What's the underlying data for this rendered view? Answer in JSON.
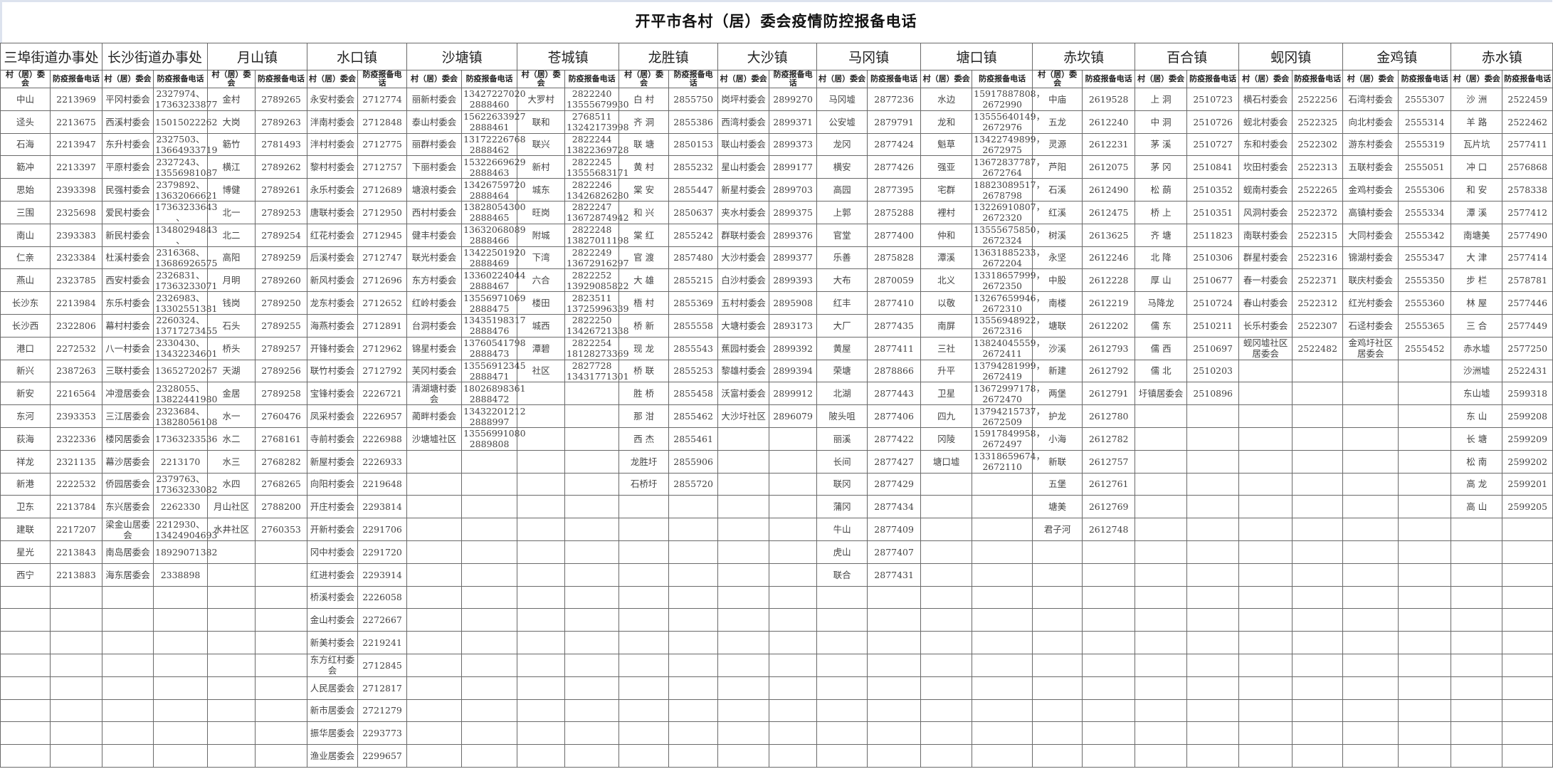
{
  "title": "开平市各村（居）委会疫情防控报备电话",
  "headers": {
    "committee": "村（居）委会",
    "phone": "防疫报备电话"
  },
  "towns": [
    {
      "name": "三埠街道办事处",
      "rows": [
        [
          "中山",
          "2213969"
        ],
        [
          "迳头",
          "2213675"
        ],
        [
          "石海",
          "2213947"
        ],
        [
          "簕冲",
          "2213397"
        ],
        [
          "思始",
          "2393398"
        ],
        [
          "三围",
          "2325698"
        ],
        [
          "南山",
          "2393383"
        ],
        [
          "仁亲",
          "2323384"
        ],
        [
          "燕山",
          "2323785"
        ],
        [
          "长沙东",
          "2213984"
        ],
        [
          "长沙西",
          "2322806"
        ],
        [
          "港口",
          "2272532"
        ],
        [
          "新兴",
          "2387263"
        ],
        [
          "新安",
          "2216564"
        ],
        [
          "东河",
          "2393353"
        ],
        [
          "荻海",
          "2322336"
        ],
        [
          "祥龙",
          "2321135"
        ],
        [
          "新港",
          "2222532"
        ],
        [
          "卫东",
          "2213784"
        ],
        [
          "建联",
          "2217207"
        ],
        [
          "星光",
          "2213843"
        ],
        [
          "西宁",
          "2213883"
        ]
      ]
    },
    {
      "name": "长沙街道办事处",
      "rows": [
        [
          "平冈村委会",
          "2327974、\n17363233877"
        ],
        [
          "西溪村委会",
          "15015022262"
        ],
        [
          "东升村委会",
          "2327503、\n13664933719"
        ],
        [
          "平原村委会",
          "2327243、\n13556981087"
        ],
        [
          "民强村委会",
          "2379892、\n13632066621"
        ],
        [
          "爱民村委会",
          "17363233643\n、"
        ],
        [
          "新民村委会",
          "13480294843\n、"
        ],
        [
          "杜溪村委会",
          "2316368、\n13686926575"
        ],
        [
          "西安村委会",
          "2326831、\n17363233071"
        ],
        [
          "东乐村委会",
          "2326983、\n13302551381"
        ],
        [
          "幕村村委会",
          "2260324、\n13717273455"
        ],
        [
          "八一村委会",
          "2330430、\n13432234601"
        ],
        [
          "三联村委会",
          "13652720267"
        ],
        [
          "冲澄居委会",
          "2328055、\n13822441980"
        ],
        [
          "三江居委会",
          "2323684、\n13828056108"
        ],
        [
          "楼冈居委会",
          "17363233536"
        ],
        [
          "幕沙居委会",
          "2213170"
        ],
        [
          "侨园居委会",
          "2379763、\n17363233082"
        ],
        [
          "东兴居委会",
          "2262330"
        ],
        [
          "梁金山居委会",
          "2212930、\n13424904693"
        ],
        [
          "南岛居委会",
          "18929071382"
        ],
        [
          "海东居委会",
          "2338898"
        ]
      ]
    },
    {
      "name": "月山镇",
      "rows": [
        [
          "金村",
          "2789265"
        ],
        [
          "大岗",
          "2789263"
        ],
        [
          "簕竹",
          "2781493"
        ],
        [
          "横江",
          "2789262"
        ],
        [
          "博健",
          "2789261"
        ],
        [
          "北一",
          "2789253"
        ],
        [
          "北二",
          "2789254"
        ],
        [
          "高阳",
          "2789259"
        ],
        [
          "月明",
          "2789260"
        ],
        [
          "钱岗",
          "2789250"
        ],
        [
          "石头",
          "2789255"
        ],
        [
          "桥头",
          "2789257"
        ],
        [
          "天湖",
          "2789256"
        ],
        [
          "金居",
          "2789258"
        ],
        [
          "水一",
          "2760476"
        ],
        [
          "水二",
          "2768161"
        ],
        [
          "水三",
          "2768282"
        ],
        [
          "水四",
          "2768265"
        ],
        [
          "月山社区",
          "2788200"
        ],
        [
          "水井社区",
          "2760353"
        ]
      ]
    },
    {
      "name": "水口镇",
      "rows": [
        [
          "永安村委会",
          "2712774"
        ],
        [
          "泮南村委会",
          "2712848"
        ],
        [
          "泮村村委会",
          "2712775"
        ],
        [
          "黎村村委会",
          "2712757"
        ],
        [
          "永乐村委会",
          "2712689"
        ],
        [
          "唐联村委会",
          "2712950"
        ],
        [
          "红花村委会",
          "2712945"
        ],
        [
          "后溪村委会",
          "2712747"
        ],
        [
          "新风村委会",
          "2712696"
        ],
        [
          "龙东村委会",
          "2712652"
        ],
        [
          "海燕村委会",
          "2712891"
        ],
        [
          "开锋村委会",
          "2712962"
        ],
        [
          "联竹村委会",
          "2712792"
        ],
        [
          "宝锋村委会",
          "2226721"
        ],
        [
          "凤采村委会",
          "2226957"
        ],
        [
          "寺前村委会",
          "2226988"
        ],
        [
          "新屋村委会",
          "2226933"
        ],
        [
          "向阳村委会",
          "2219648"
        ],
        [
          "开庄村委会",
          "2293814"
        ],
        [
          "开新村委会",
          "2291706"
        ],
        [
          "冈中村委会",
          "2291720"
        ],
        [
          "红进村委会",
          "2293914"
        ],
        [
          "桥溪村委会",
          "2226058"
        ],
        [
          "金山村委会",
          "2272667"
        ],
        [
          "新美村委会",
          "2219241"
        ],
        [
          "东方红村委会",
          "2712845"
        ],
        [
          "人民居委会",
          "2712817"
        ],
        [
          "新市居委会",
          "2721279"
        ],
        [
          "振华居委会",
          "2293773"
        ],
        [
          "渔业居委会",
          "2299657"
        ]
      ]
    },
    {
      "name": "沙塘镇",
      "rows": [
        [
          "丽新村委会",
          "13427227020\n2888460"
        ],
        [
          "泰山村委会",
          "15622633927\n2888461"
        ],
        [
          "丽群村委会",
          "13172226768\n2888462"
        ],
        [
          "下丽村委会",
          "15322669629\n2888463"
        ],
        [
          "塘浪村委会",
          "13426759720\n2888464"
        ],
        [
          "西村村委会",
          "13828054300\n2888465"
        ],
        [
          "健丰村委会",
          "13632068089\n2888466"
        ],
        [
          "联光村委会",
          "13422501920\n2888469"
        ],
        [
          "东方村委会",
          "13360224044\n2888467"
        ],
        [
          "红岭村委会",
          "13556971069\n2888475"
        ],
        [
          "台洞村委会",
          "13435198317\n2888476"
        ],
        [
          "锦星村委会",
          "13760541798\n2888473"
        ],
        [
          "芙冈村委会",
          "13556912345\n2888471"
        ],
        [
          "清湖塘村委会",
          "18026898361\n2888472"
        ],
        [
          "蔺畔村委会",
          "13432201212\n2888997"
        ],
        [
          "沙塘墟社区",
          "13556991080\n2889808"
        ]
      ]
    },
    {
      "name": "苍城镇",
      "rows": [
        [
          "大罗村",
          "2822240\n13555679930"
        ],
        [
          "联和",
          "2768511\n13242173998"
        ],
        [
          "联兴",
          "2822244\n13822369728"
        ],
        [
          "新村",
          "2822245\n13555683171"
        ],
        [
          "城东",
          "2822246\n13426826280"
        ],
        [
          "旺岗",
          "2822247\n13672874942"
        ],
        [
          "附城",
          "2822248\n13827011198"
        ],
        [
          "下湾",
          "2822249\n13672916297"
        ],
        [
          "六合",
          "2822252\n13929085822"
        ],
        [
          "楼田",
          "2823511\n13725996339"
        ],
        [
          "城西",
          "2822250\n13426721338"
        ],
        [
          "潭碧",
          "2822254\n18128273369"
        ],
        [
          "社区",
          "2827728\n13431771301"
        ]
      ]
    },
    {
      "name": "龙胜镇",
      "rows": [
        [
          "白 村",
          "2855750"
        ],
        [
          "齐 洞",
          "2855386"
        ],
        [
          "联 塘",
          "2850153"
        ],
        [
          "黄 村",
          "2855232"
        ],
        [
          "棠 安",
          "2855447"
        ],
        [
          "和 兴",
          "2850637"
        ],
        [
          "棠 红",
          "2855242"
        ],
        [
          "官 渡",
          "2857480"
        ],
        [
          "大 雄",
          "2855215"
        ],
        [
          "梧 村",
          "2855369"
        ],
        [
          "桥 新",
          "2855558"
        ],
        [
          "现 龙",
          "2855543"
        ],
        [
          "桥 联",
          "2855253"
        ],
        [
          "胜 桥",
          "2855458"
        ],
        [
          "那 泔",
          "2855462"
        ],
        [
          "西 杰",
          "2855461"
        ],
        [
          "龙胜圩",
          "2855906"
        ],
        [
          "石桥圩",
          "2855720"
        ]
      ]
    },
    {
      "name": "大沙镇",
      "rows": [
        [
          "岗坪村委会",
          "2899270"
        ],
        [
          "西湾村委会",
          "2899371"
        ],
        [
          "联山村委会",
          "2899373"
        ],
        [
          "星山村委会",
          "2899177"
        ],
        [
          "新星村委会",
          "2899703"
        ],
        [
          "夹水村委会",
          "2899375"
        ],
        [
          "群联村委会",
          "2899376"
        ],
        [
          "大沙村委会",
          "2899377"
        ],
        [
          "白沙村委会",
          "2899393"
        ],
        [
          "五村村委会",
          "2895908"
        ],
        [
          "大塘村委会",
          "2893173"
        ],
        [
          "蕉园村委会",
          "2899392"
        ],
        [
          "黎雄村委会",
          "2899394"
        ],
        [
          "沃富村委会",
          "2899912"
        ],
        [
          "大沙圩社区",
          "2896079"
        ]
      ]
    },
    {
      "name": "马冈镇",
      "rows": [
        [
          "马冈墟",
          "2877236"
        ],
        [
          "公安墟",
          "2879791"
        ],
        [
          "龙冈",
          "2877424"
        ],
        [
          "横安",
          "2877426"
        ],
        [
          "高园",
          "2877395"
        ],
        [
          "上郭",
          "2875288"
        ],
        [
          "官堂",
          "2877400"
        ],
        [
          "乐善",
          "2875828"
        ],
        [
          "大布",
          "2870059"
        ],
        [
          "红丰",
          "2877410"
        ],
        [
          "大厂",
          "2877435"
        ],
        [
          "黄屋",
          "2877411"
        ],
        [
          "荣塘",
          "2878866"
        ],
        [
          "北湖",
          "2877443"
        ],
        [
          "陂头咀",
          "2877406"
        ],
        [
          "丽溪",
          "2877422"
        ],
        [
          "长间",
          "2877427"
        ],
        [
          "联冈",
          "2877429"
        ],
        [
          "蒲冈",
          "2877434"
        ],
        [
          "牛山",
          "2877409"
        ],
        [
          "虎山",
          "2877407"
        ],
        [
          "联合",
          "2877431"
        ]
      ]
    },
    {
      "name": "塘口镇",
      "rows": [
        [
          "水边",
          "15917887808，\n2672990"
        ],
        [
          "龙和",
          "13555640149，\n2672976"
        ],
        [
          "魁草",
          "13422749899，\n2672975"
        ],
        [
          "强亚",
          "13672837787，\n2672764"
        ],
        [
          "宅群",
          "18823089517，\n2678798"
        ],
        [
          "裡村",
          "13226910807，\n2672320"
        ],
        [
          "仲和",
          "13555675850，\n2672324"
        ],
        [
          "潭溪",
          "13631885233，\n2672204"
        ],
        [
          "北义",
          "13318657999，\n2672350"
        ],
        [
          "以敬",
          "13267659946，\n2672310"
        ],
        [
          "南屏",
          "13556948922，\n2672316"
        ],
        [
          "三社",
          "13824045559，\n2672411"
        ],
        [
          "升平",
          "13794281999，\n2672419"
        ],
        [
          "卫星",
          "13672997178，\n2672470"
        ],
        [
          "四九",
          "13794215737，\n2672509"
        ],
        [
          "冈陵",
          "15917849958，\n2672497"
        ],
        [
          "塘口墟",
          "13318659674，\n2672110"
        ]
      ]
    },
    {
      "name": "赤坎镇",
      "rows": [
        [
          "中庙",
          "2619528"
        ],
        [
          "五龙",
          "2612240"
        ],
        [
          "灵源",
          "2612231"
        ],
        [
          "芦阳",
          "2612075"
        ],
        [
          "石溪",
          "2612490"
        ],
        [
          "红溪",
          "2612475"
        ],
        [
          "树溪",
          "2613625"
        ],
        [
          "永坚",
          "2612246"
        ],
        [
          "中股",
          "2612228"
        ],
        [
          "南楼",
          "2612219"
        ],
        [
          "塘联",
          "2612202"
        ],
        [
          "沙溪",
          "2612793"
        ],
        [
          "新建",
          "2612792"
        ],
        [
          "两堡",
          "2612791"
        ],
        [
          "护龙",
          "2612780"
        ],
        [
          "小海",
          "2612782"
        ],
        [
          "新联",
          "2612757"
        ],
        [
          "五堡",
          "2612761"
        ],
        [
          "塘美",
          "2612769"
        ],
        [
          "君子河",
          "2612748"
        ]
      ]
    },
    {
      "name": "百合镇",
      "rows": [
        [
          "上 洞",
          "2510723"
        ],
        [
          "中 洞",
          "2510726"
        ],
        [
          "茅 溪",
          "2510727"
        ],
        [
          "茅 冈",
          "2510841"
        ],
        [
          "松 蓢",
          "2510352"
        ],
        [
          "桥 上",
          "2510351"
        ],
        [
          "齐 塘",
          "2511823"
        ],
        [
          "北 降",
          "2510306"
        ],
        [
          "厚 山",
          "2510677"
        ],
        [
          "马降龙",
          "2510724"
        ],
        [
          "儒 东",
          "2510211"
        ],
        [
          "儒 西",
          "2510697"
        ],
        [
          "儒 北",
          "2510203"
        ],
        [
          "圩镇居委会",
          "2510896"
        ]
      ]
    },
    {
      "name": "蚬冈镇",
      "rows": [
        [
          "横石村委会",
          "2522256"
        ],
        [
          "蚬北村委会",
          "2522325"
        ],
        [
          "东和村委会",
          "2522302"
        ],
        [
          "坎田村委会",
          "2522313"
        ],
        [
          "蚬南村委会",
          "2522265"
        ],
        [
          "风洞村委会",
          "2522372"
        ],
        [
          "南联村委会",
          "2522315"
        ],
        [
          "群星村委会",
          "2522316"
        ],
        [
          "春一村委会",
          "2522371"
        ],
        [
          "春山村委会",
          "2522312"
        ],
        [
          "长乐村委会",
          "2522307"
        ],
        [
          "蚬冈墟社区居委会",
          "2522482"
        ]
      ]
    },
    {
      "name": "金鸡镇",
      "rows": [
        [
          "石湾村委会",
          "2555307"
        ],
        [
          "向北村委会",
          "2555314"
        ],
        [
          "游东村委会",
          "2555319"
        ],
        [
          "五联村委会",
          "2555051"
        ],
        [
          "金鸡村委会",
          "2555306"
        ],
        [
          "高镇村委会",
          "2555334"
        ],
        [
          "大同村委会",
          "2555342"
        ],
        [
          "锦湖村委会",
          "2555347"
        ],
        [
          "联庆村委会",
          "2555350"
        ],
        [
          "红光村委会",
          "2555360"
        ],
        [
          "石迳村委会",
          "2555365"
        ],
        [
          "金鸡圩社区居委会",
          "2555452"
        ]
      ]
    },
    {
      "name": "赤水镇",
      "rows": [
        [
          "沙 洲",
          "2522459"
        ],
        [
          "羊 路",
          "2522462"
        ],
        [
          "瓦片坑",
          "2577411"
        ],
        [
          "冲 口",
          "2576868"
        ],
        [
          "和 安",
          "2578338"
        ],
        [
          "潭 溪",
          "2577412"
        ],
        [
          "南塘美",
          "2577490"
        ],
        [
          "大 津",
          "2577414"
        ],
        [
          "步 栏",
          "2578781"
        ],
        [
          "林 屋",
          "2577446"
        ],
        [
          "三 合",
          "2577449"
        ],
        [
          "赤水墟",
          "2577250"
        ],
        [
          "沙洲墟",
          "2522431"
        ],
        [
          "东山墟",
          "2599318"
        ],
        [
          "东 山",
          "2599208"
        ],
        [
          "长 塘",
          "2599209"
        ],
        [
          "松 南",
          "2599202"
        ],
        [
          "高 龙",
          "2599201"
        ],
        [
          "高 山",
          "2599205"
        ]
      ]
    }
  ]
}
